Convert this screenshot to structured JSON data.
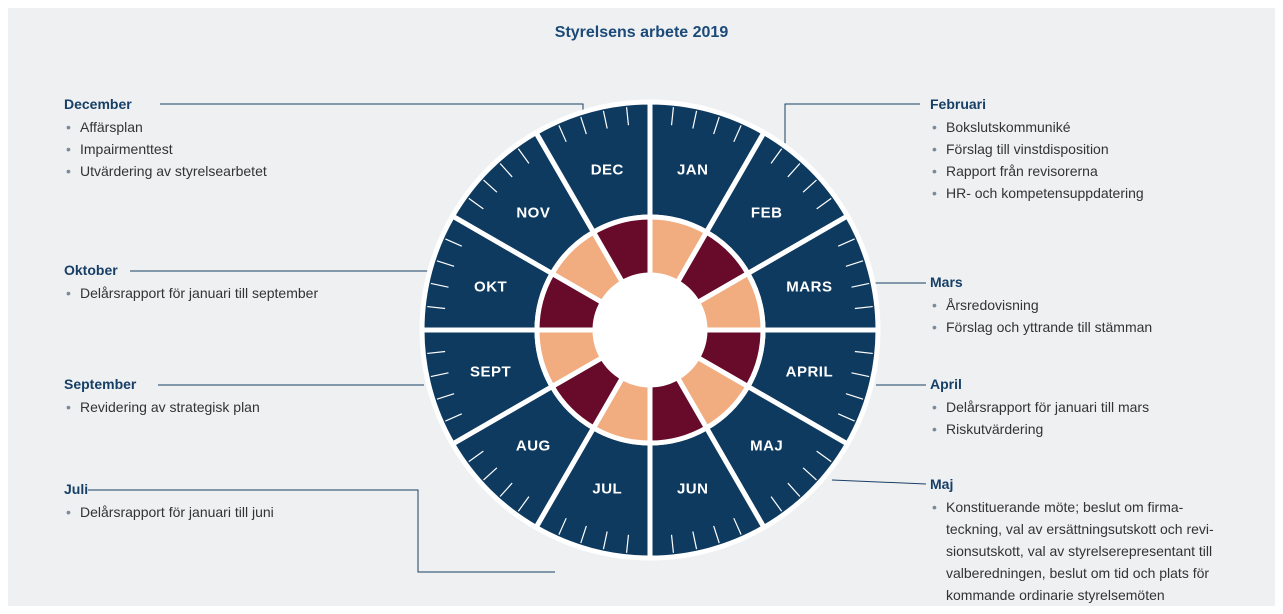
{
  "title": "Styrelsens arbete 2019",
  "months": [
    "JAN",
    "FEB",
    "MARS",
    "APRIL",
    "MAJ",
    "JUN",
    "JUL",
    "AUG",
    "SEPT",
    "OKT",
    "NOV",
    "DEC"
  ],
  "notes": [
    {
      "title": "December",
      "items": [
        [
          "Affärsplan"
        ],
        [
          "Impairmenttest"
        ],
        [
          "Utvärdering av styrelsearbetet"
        ]
      ]
    },
    {
      "title": "Oktober",
      "items": [
        [
          "Delårsrapport för januari till september"
        ]
      ]
    },
    {
      "title": "September",
      "items": [
        [
          "Revidering av strategisk plan"
        ]
      ]
    },
    {
      "title": "Juli",
      "items": [
        [
          "Delårsrapport för januari till juni"
        ]
      ]
    },
    {
      "title": "Februari",
      "items": [
        [
          "Bokslutskommuniké"
        ],
        [
          "Förslag till vinstdisposition"
        ],
        [
          "Rapport från revisorerna"
        ],
        [
          "HR- och kompetensuppdatering"
        ]
      ]
    },
    {
      "title": "Mars",
      "items": [
        [
          "Årsredovisning"
        ],
        [
          "Förslag och yttrande till stämman"
        ]
      ]
    },
    {
      "title": "April",
      "items": [
        [
          "Delårsrapport för januari till mars"
        ],
        [
          "Riskutvärdering"
        ]
      ]
    },
    {
      "title": "Maj",
      "items": [
        [
          "Konstituerande möte; beslut om firma-",
          "teckning, val av ersättningsutskott och revi-",
          "sionsutskott, val av styrelserepresentant till",
          "valberedningen, beslut om tid och plats för",
          "kommande ordinarie styrelsemöten"
        ]
      ]
    }
  ]
}
